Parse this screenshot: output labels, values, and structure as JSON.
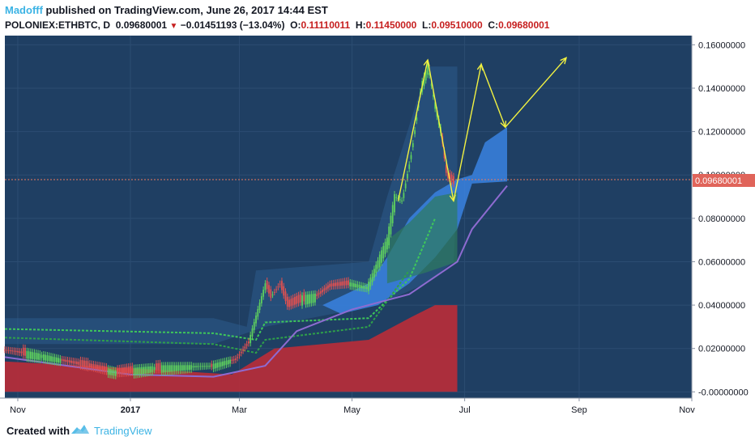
{
  "header": {
    "author": "Madofff",
    "published": " published on TradingView.com, June 26, 2017 14:44 EST",
    "symbol": "POLONIEX:ETHBTC, D",
    "last": "0.09680001",
    "change": "−0.01451193 (−13.04%)",
    "o_label": "O:",
    "o_value": "0.11110011",
    "h_label": "H:",
    "h_value": "0.11450000",
    "l_label": "L:",
    "l_value": "0.09510000",
    "c_label": "C:",
    "c_value": "0.09680001"
  },
  "price_axis": {
    "ticks": [
      "0.16000000",
      "0.14000000",
      "0.12000000",
      "0.10000000",
      "0.08000000",
      "0.06000000",
      "0.04000000",
      "0.02000000",
      "-0.00000000"
    ],
    "last_price_label": "0.09680001"
  },
  "time_axis": {
    "ticks": [
      "Nov",
      "2017",
      "Mar",
      "May",
      "Jul",
      "Sep",
      "Nov"
    ]
  },
  "footer": {
    "created_with": "Created with",
    "brand": "TradingView"
  },
  "colors": {
    "chart_bg": "#1f3f63",
    "up": "#5ecf5e",
    "down": "#e05050",
    "cloud": "#3a83e0",
    "red_band": "#b32d3a",
    "arrow": "#f2f241",
    "price_line": "#e87a5e"
  },
  "chart_data": {
    "type": "candlestick",
    "symbol": "POLONIEX:ETHBTC",
    "interval": "D",
    "y_range": [
      -0.001,
      0.162
    ],
    "x_range": [
      "2016-10-25",
      "2017-11-01"
    ],
    "last_price": 0.09680001,
    "ohlc_last": {
      "open": 0.11110011,
      "high": 0.1145,
      "low": 0.0951,
      "close": 0.09680001
    },
    "close_path": [
      [
        "2016-10-25",
        0.0195
      ],
      [
        "2016-11-15",
        0.0165
      ],
      [
        "2016-12-10",
        0.012
      ],
      [
        "2016-12-25",
        0.009
      ],
      [
        "2017-01-15",
        0.011
      ],
      [
        "2017-02-15",
        0.012
      ],
      [
        "2017-02-28",
        0.015
      ],
      [
        "2017-03-07",
        0.023
      ],
      [
        "2017-03-12",
        0.038
      ],
      [
        "2017-03-16",
        0.05
      ],
      [
        "2017-03-19",
        0.044
      ],
      [
        "2017-03-24",
        0.05
      ],
      [
        "2017-03-28",
        0.04
      ],
      [
        "2017-04-05",
        0.043
      ],
      [
        "2017-04-12",
        0.044
      ],
      [
        "2017-04-20",
        0.049
      ],
      [
        "2017-04-30",
        0.05
      ],
      [
        "2017-05-10",
        0.048
      ],
      [
        "2017-05-16",
        0.06
      ],
      [
        "2017-05-21",
        0.07
      ],
      [
        "2017-05-25",
        0.09
      ],
      [
        "2017-05-29",
        0.088
      ],
      [
        "2017-06-03",
        0.11
      ],
      [
        "2017-06-08",
        0.14
      ],
      [
        "2017-06-12",
        0.15
      ],
      [
        "2017-06-15",
        0.135
      ],
      [
        "2017-06-19",
        0.12
      ],
      [
        "2017-06-22",
        0.1
      ],
      [
        "2017-06-26",
        0.0968
      ]
    ],
    "arrow_path": [
      [
        "2017-05-26",
        0.088
      ],
      [
        "2017-06-11",
        0.153
      ],
      [
        "2017-06-25",
        0.088
      ],
      [
        "2017-07-10",
        0.151
      ],
      [
        "2017-07-23",
        0.122
      ],
      [
        "2017-08-25",
        0.154
      ]
    ]
  }
}
